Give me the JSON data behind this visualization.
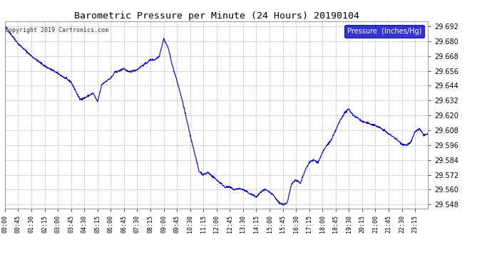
{
  "title": "Barometric Pressure per Minute (24 Hours) 20190104",
  "copyright": "Copyright 2019 Cartronics.com",
  "legend_label": "Pressure  (Inches/Hg)",
  "line_color": "#0000cc",
  "background_color": "#ffffff",
  "plot_bg_color": "#ffffff",
  "grid_color": "#aaaaaa",
  "ylim": [
    29.545,
    29.696
  ],
  "yticks": [
    29.548,
    29.56,
    29.572,
    29.584,
    29.596,
    29.608,
    29.62,
    29.632,
    29.644,
    29.656,
    29.668,
    29.68,
    29.692
  ],
  "xtick_labels": [
    "00:00",
    "00:45",
    "01:30",
    "02:15",
    "03:00",
    "03:45",
    "04:30",
    "05:15",
    "06:00",
    "06:45",
    "07:30",
    "08:15",
    "09:00",
    "09:45",
    "10:30",
    "11:15",
    "12:00",
    "12:45",
    "13:30",
    "14:15",
    "15:00",
    "15:45",
    "16:30",
    "17:15",
    "18:00",
    "18:45",
    "19:30",
    "20:15",
    "21:00",
    "21:45",
    "22:30",
    "23:15"
  ],
  "keypoints": [
    [
      0,
      29.692
    ],
    [
      45,
      29.678
    ],
    [
      90,
      29.668
    ],
    [
      135,
      29.66
    ],
    [
      180,
      29.654
    ],
    [
      225,
      29.647
    ],
    [
      255,
      29.633
    ],
    [
      270,
      29.634
    ],
    [
      285,
      29.636
    ],
    [
      300,
      29.638
    ],
    [
      315,
      29.631
    ],
    [
      330,
      29.645
    ],
    [
      345,
      29.648
    ],
    [
      360,
      29.65
    ],
    [
      375,
      29.655
    ],
    [
      390,
      29.656
    ],
    [
      405,
      29.658
    ],
    [
      420,
      29.655
    ],
    [
      435,
      29.656
    ],
    [
      450,
      29.657
    ],
    [
      465,
      29.66
    ],
    [
      480,
      29.662
    ],
    [
      495,
      29.665
    ],
    [
      510,
      29.665
    ],
    [
      525,
      29.668
    ],
    [
      540,
      29.682
    ],
    [
      555,
      29.675
    ],
    [
      570,
      29.66
    ],
    [
      585,
      29.648
    ],
    [
      600,
      29.635
    ],
    [
      615,
      29.62
    ],
    [
      630,
      29.604
    ],
    [
      645,
      29.59
    ],
    [
      660,
      29.575
    ],
    [
      675,
      29.572
    ],
    [
      690,
      29.574
    ],
    [
      705,
      29.571
    ],
    [
      720,
      29.568
    ],
    [
      735,
      29.565
    ],
    [
      750,
      29.562
    ],
    [
      765,
      29.562
    ],
    [
      780,
      29.56
    ],
    [
      795,
      29.561
    ],
    [
      810,
      29.56
    ],
    [
      825,
      29.558
    ],
    [
      840,
      29.556
    ],
    [
      855,
      29.554
    ],
    [
      870,
      29.558
    ],
    [
      885,
      29.56
    ],
    [
      900,
      29.558
    ],
    [
      915,
      29.555
    ],
    [
      930,
      29.55
    ],
    [
      945,
      29.548
    ],
    [
      960,
      29.549
    ],
    [
      975,
      29.565
    ],
    [
      990,
      29.568
    ],
    [
      1005,
      29.565
    ],
    [
      1020,
      29.575
    ],
    [
      1035,
      29.582
    ],
    [
      1050,
      29.584
    ],
    [
      1065,
      29.582
    ],
    [
      1080,
      29.59
    ],
    [
      1095,
      29.596
    ],
    [
      1110,
      29.6
    ],
    [
      1125,
      29.608
    ],
    [
      1140,
      29.616
    ],
    [
      1155,
      29.622
    ],
    [
      1170,
      29.625
    ],
    [
      1185,
      29.62
    ],
    [
      1200,
      29.618
    ],
    [
      1215,
      29.615
    ],
    [
      1230,
      29.614
    ],
    [
      1245,
      29.613
    ],
    [
      1260,
      29.612
    ],
    [
      1275,
      29.61
    ],
    [
      1290,
      29.608
    ],
    [
      1305,
      29.605
    ],
    [
      1320,
      29.603
    ],
    [
      1335,
      29.6
    ],
    [
      1350,
      29.597
    ],
    [
      1365,
      29.596
    ],
    [
      1380,
      29.598
    ],
    [
      1395,
      29.607
    ],
    [
      1410,
      29.609
    ],
    [
      1425,
      29.604
    ],
    [
      1439,
      29.605
    ]
  ]
}
